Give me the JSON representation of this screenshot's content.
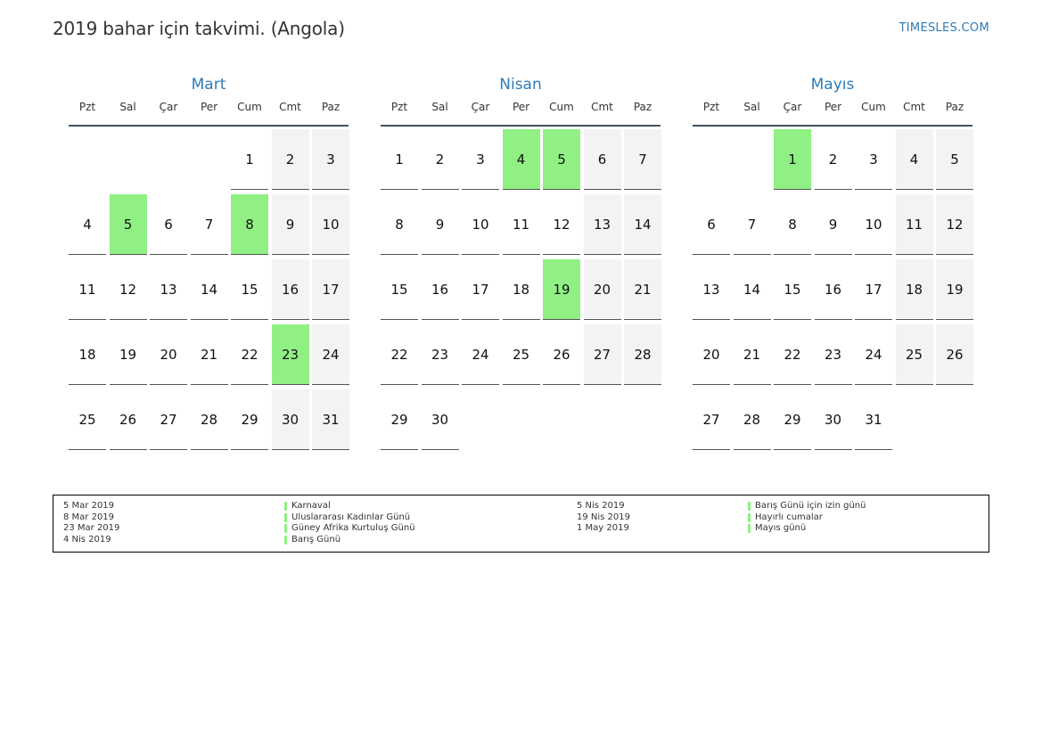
{
  "title": "2019 bahar için takvimi. (Angola)",
  "brand": "TIMESLES.COM",
  "colors": {
    "accent": "#2f7bb6",
    "holiday": "#90f084",
    "weekend": "#f3f3f3",
    "rule": "#3e4f63"
  },
  "weekdays": [
    "Pzt",
    "Sal",
    "Çar",
    "Per",
    "Cum",
    "Cmt",
    "Paz"
  ],
  "months": [
    {
      "name": "Mart",
      "first_weekday_index": 4,
      "days": 31,
      "holidays": [
        5,
        8,
        23
      ]
    },
    {
      "name": "Nisan",
      "first_weekday_index": 0,
      "days": 30,
      "holidays": [
        4,
        5,
        19
      ]
    },
    {
      "name": "Mayıs",
      "first_weekday_index": 2,
      "days": 31,
      "holidays": [
        1
      ]
    }
  ],
  "legend": {
    "left": [
      {
        "date": "5 Mar 2019",
        "name": "Karnaval"
      },
      {
        "date": "8 Mar 2019",
        "name": "Uluslararası Kadınlar Günü"
      },
      {
        "date": "23 Mar 2019",
        "name": "Güney Afrika Kurtuluş Günü"
      },
      {
        "date": "4 Nis 2019",
        "name": "Barış Günü"
      }
    ],
    "right": [
      {
        "date": "5 Nis 2019",
        "name": "Barış Günü için izin günü"
      },
      {
        "date": "19 Nis 2019",
        "name": "Hayırlı cumalar"
      },
      {
        "date": "1 May 2019",
        "name": "Mayıs günü"
      }
    ]
  }
}
